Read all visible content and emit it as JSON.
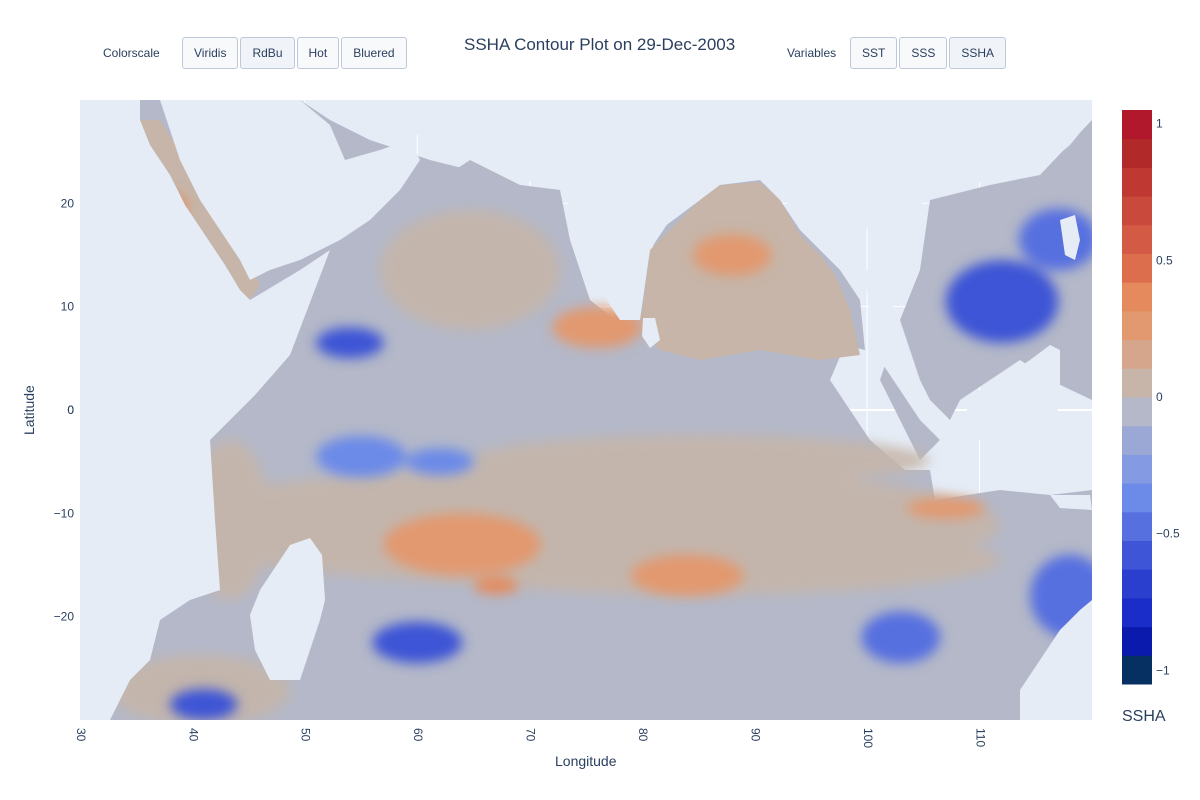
{
  "header": {
    "title": "SSHA Contour Plot on 29-Dec-2003",
    "colorscale_label": "Colorscale",
    "colorscale_buttons": [
      "Viridis",
      "RdBu",
      "Hot",
      "Bluered"
    ],
    "colorscale_active": "RdBu",
    "variables_label": "Variables",
    "variable_buttons": [
      "SST",
      "SSS",
      "SSHA"
    ],
    "variable_active": "SSHA"
  },
  "colors": {
    "plot_bg": "#e5ecf6",
    "grid": "#ffffff",
    "land": "#e5ecf6",
    "ocean_neutral": "#b4b8c8",
    "ocean_tan": "#c6b5a8"
  },
  "chart_data": {
    "type": "contour",
    "title": "SSHA Contour Plot on 29-Dec-2003",
    "xlabel": "Longitude",
    "ylabel": "Latitude",
    "xlim": [
      30,
      120
    ],
    "ylim": [
      -30,
      30
    ],
    "xticks": [
      30,
      40,
      50,
      60,
      70,
      80,
      90,
      100,
      110
    ],
    "yticks": [
      -20,
      -10,
      0,
      10,
      20
    ],
    "grid": true,
    "colorbar": {
      "title": "SSHA",
      "range": [
        -1.05,
        1.05
      ],
      "ticks": [
        -1,
        -0.5,
        0,
        0.5,
        1
      ],
      "tick_labels": [
        "−1",
        "−0.5",
        "0",
        "0.5",
        "1"
      ],
      "colors": [
        "#053061",
        "#0a1aad",
        "#1a2dc8",
        "#2b3fcf",
        "#3d55d6",
        "#5670e0",
        "#6c8ae8",
        "#849ae2",
        "#9ba8d5",
        "#b4b8c8",
        "#c6b5a8",
        "#d5a68c",
        "#e29970",
        "#e58a5c",
        "#dc6e4e",
        "#d35a45",
        "#c94a3c",
        "#bf3832",
        "#b22929",
        "#b2182b"
      ]
    },
    "anomaly_regions": [
      {
        "lon": 54,
        "lat": 6.5,
        "rx": 3.0,
        "ry": 1.5,
        "value": -0.6
      },
      {
        "lon": 60,
        "lat": -22.5,
        "rx": 4.0,
        "ry": 2.0,
        "value": -0.55
      },
      {
        "lon": 112,
        "lat": 10.5,
        "rx": 5.0,
        "ry": 4.0,
        "value": -0.55
      },
      {
        "lon": 117,
        "lat": 16.5,
        "rx": 3.5,
        "ry": 3.0,
        "value": -0.5
      },
      {
        "lon": 103,
        "lat": -22,
        "rx": 3.5,
        "ry": 2.5,
        "value": -0.45
      },
      {
        "lon": 41,
        "lat": -28.5,
        "rx": 3.0,
        "ry": 1.5,
        "value": -0.55
      },
      {
        "lon": 55,
        "lat": -4.5,
        "rx": 4.0,
        "ry": 2.0,
        "value": -0.35
      },
      {
        "lon": 62,
        "lat": -5,
        "rx": 3.0,
        "ry": 1.3,
        "value": -0.35
      },
      {
        "lon": 118,
        "lat": -18,
        "rx": 3.5,
        "ry": 4.0,
        "value": -0.45
      },
      {
        "lon": 84,
        "lat": -16,
        "rx": 5.0,
        "ry": 2.0,
        "value": 0.3
      },
      {
        "lon": 64,
        "lat": -13,
        "rx": 7.0,
        "ry": 3.0,
        "value": 0.25
      },
      {
        "lon": 67,
        "lat": -17,
        "rx": 2.0,
        "ry": 0.8,
        "value": 0.35
      },
      {
        "lon": 88,
        "lat": 15,
        "rx": 3.5,
        "ry": 2.0,
        "value": 0.25
      },
      {
        "lon": 76,
        "lat": 8,
        "rx": 4.0,
        "ry": 2.0,
        "value": 0.25
      },
      {
        "lon": 38,
        "lat": 19.5,
        "rx": 1.5,
        "ry": 1.5,
        "value": 0.35
      },
      {
        "lon": 107,
        "lat": -9.5,
        "rx": 3.5,
        "ry": 1.0,
        "value": 0.3
      }
    ]
  }
}
